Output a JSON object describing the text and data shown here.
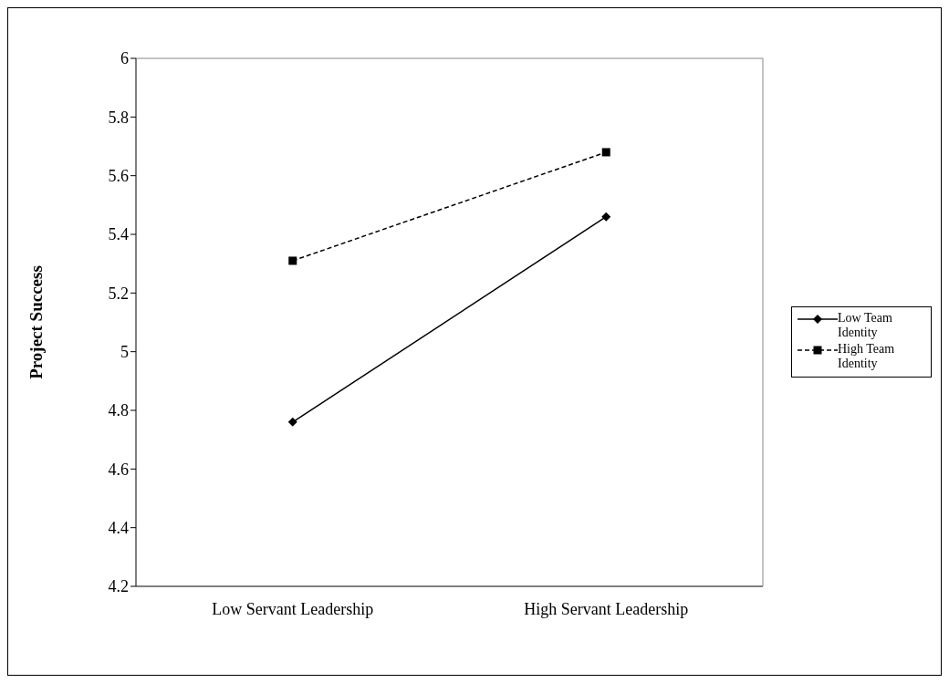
{
  "chart_data": {
    "type": "line",
    "ylabel": "Project Success",
    "categories": [
      "Low Servant Leadership",
      "High Servant Leadership"
    ],
    "series": [
      {
        "name": "Low Team Identity",
        "color": "#000000",
        "values": [
          4.76,
          5.46
        ],
        "marker": "diamond",
        "line_style": "solid"
      },
      {
        "name": "High Team Identity",
        "color": "#000000",
        "values": [
          5.31,
          5.68
        ],
        "marker": "square",
        "line_style": "dashed"
      }
    ],
    "ylim": [
      4.2,
      6
    ],
    "yticks": [
      4.2,
      4.4,
      4.6,
      4.8,
      5,
      5.2,
      5.4,
      5.6,
      5.8,
      6
    ],
    "legend": "right"
  }
}
